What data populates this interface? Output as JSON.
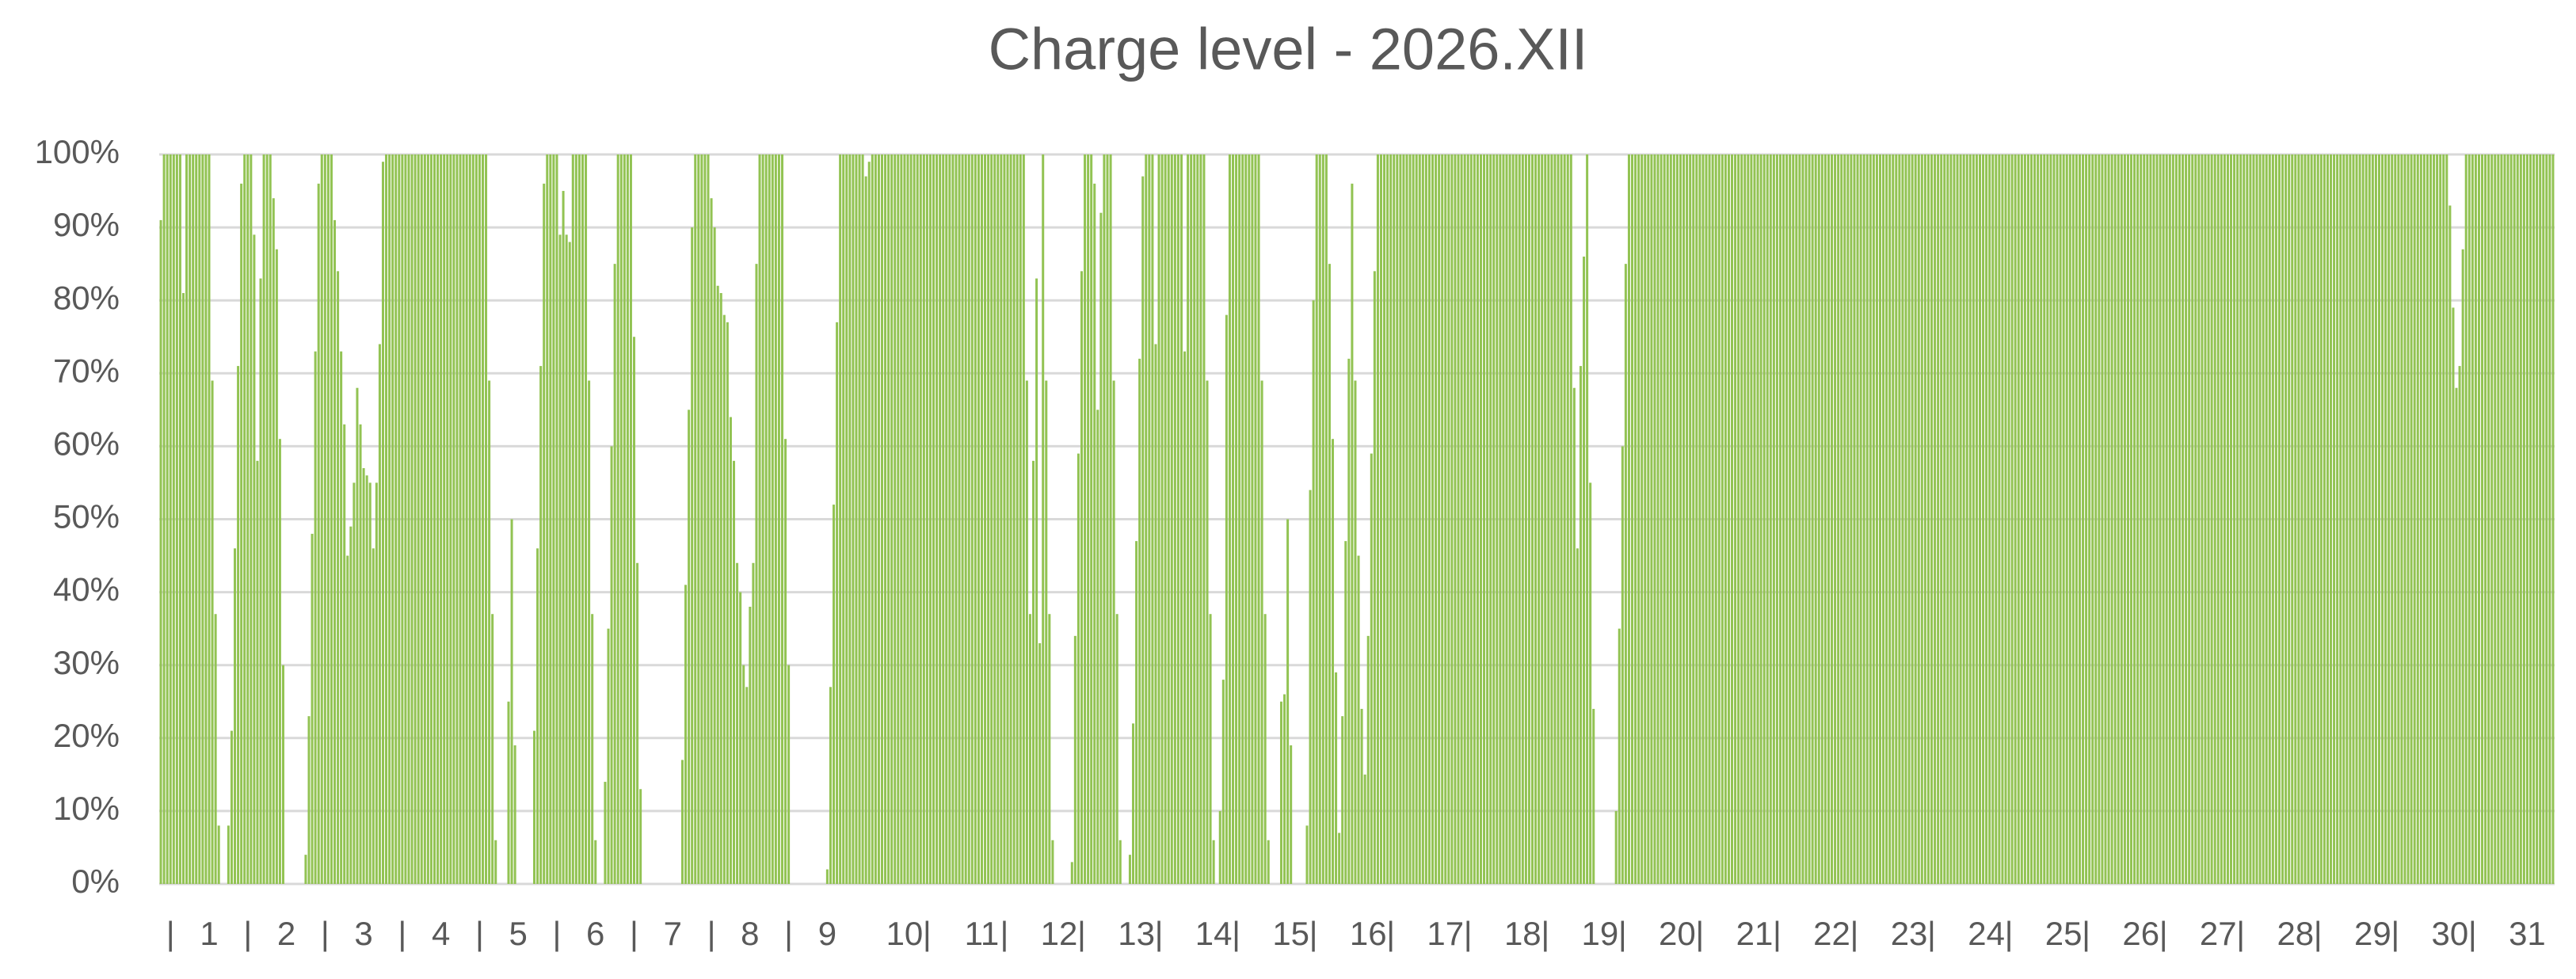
{
  "chart_data": {
    "type": "bar",
    "title": "Charge level - 2026.XII",
    "color": "#92c353",
    "grid": true,
    "ylim": [
      0,
      100
    ],
    "yticks": [
      {
        "value": 0,
        "label": "0%"
      },
      {
        "value": 10,
        "label": "10%"
      },
      {
        "value": 20,
        "label": "20%"
      },
      {
        "value": 30,
        "label": "30%"
      },
      {
        "value": 40,
        "label": "40%"
      },
      {
        "value": 50,
        "label": "50%"
      },
      {
        "value": 60,
        "label": "60%"
      },
      {
        "value": 70,
        "label": "70%"
      },
      {
        "value": 80,
        "label": "80%"
      },
      {
        "value": 90,
        "label": "90%"
      },
      {
        "value": 100,
        "label": "100%"
      }
    ],
    "categories": [
      null,
      null,
      null,
      "|",
      null,
      null,
      null,
      null,
      null,
      null,
      null,
      null,
      null,
      null,
      null,
      "1",
      null,
      null,
      null,
      null,
      null,
      null,
      null,
      null,
      null,
      null,
      null,
      "|",
      null,
      null,
      null,
      null,
      null,
      null,
      null,
      null,
      null,
      null,
      null,
      "2",
      null,
      null,
      null,
      null,
      null,
      null,
      null,
      null,
      null,
      null,
      null,
      "|",
      null,
      null,
      null,
      null,
      null,
      null,
      null,
      null,
      null,
      null,
      null,
      "3",
      null,
      null,
      null,
      null,
      null,
      null,
      null,
      null,
      null,
      null,
      null,
      "|",
      null,
      null,
      null,
      null,
      null,
      null,
      null,
      null,
      null,
      null,
      null,
      "4",
      null,
      null,
      null,
      null,
      null,
      null,
      null,
      null,
      null,
      null,
      null,
      "|",
      null,
      null,
      null,
      null,
      null,
      null,
      null,
      null,
      null,
      null,
      null,
      "5",
      null,
      null,
      null,
      null,
      null,
      null,
      null,
      null,
      null,
      null,
      null,
      "|",
      null,
      null,
      null,
      null,
      null,
      null,
      null,
      null,
      null,
      null,
      null,
      "6",
      null,
      null,
      null,
      null,
      null,
      null,
      null,
      null,
      null,
      null,
      null,
      "|",
      null,
      null,
      null,
      null,
      null,
      null,
      null,
      null,
      null,
      null,
      null,
      "7",
      null,
      null,
      null,
      null,
      null,
      null,
      null,
      null,
      null,
      null,
      null,
      "|",
      null,
      null,
      null,
      null,
      null,
      null,
      null,
      null,
      null,
      null,
      null,
      "8",
      null,
      null,
      null,
      null,
      null,
      null,
      null,
      null,
      null,
      null,
      null,
      "|",
      null,
      null,
      null,
      null,
      null,
      null,
      null,
      null,
      null,
      null,
      null,
      "9",
      null,
      null,
      null,
      null,
      null,
      null,
      null,
      null,
      null,
      null,
      null,
      null,
      null,
      null,
      null,
      null,
      null,
      null,
      null,
      null,
      null,
      null,
      null,
      "10",
      null,
      null,
      null,
      null,
      null,
      null,
      "|",
      null,
      null,
      null,
      null,
      null,
      null,
      null,
      null,
      null,
      null,
      null,
      null,
      null,
      null,
      null,
      null,
      "11",
      null,
      null,
      null,
      null,
      null,
      null,
      "|",
      null,
      null,
      null,
      null,
      null,
      null,
      null,
      null,
      null,
      null,
      null,
      null,
      null,
      null,
      null,
      null,
      "12",
      null,
      null,
      null,
      null,
      null,
      null,
      "|",
      null,
      null,
      null,
      null,
      null,
      null,
      null,
      null,
      null,
      null,
      null,
      null,
      null,
      null,
      null,
      null,
      "13",
      null,
      null,
      null,
      null,
      null,
      null,
      "|",
      null,
      null,
      null,
      null,
      null,
      null,
      null,
      null,
      null,
      null,
      null,
      null,
      null,
      null,
      null,
      null,
      "14",
      null,
      null,
      null,
      null,
      null,
      null,
      "|",
      null,
      null,
      null,
      null,
      null,
      null,
      null,
      null,
      null,
      null,
      null,
      null,
      null,
      null,
      null,
      null,
      "15",
      null,
      null,
      null,
      null,
      null,
      null,
      "|",
      null,
      null,
      null,
      null,
      null,
      null,
      null,
      null,
      null,
      null,
      null,
      null,
      null,
      null,
      null,
      null,
      "16",
      null,
      null,
      null,
      null,
      null,
      null,
      "|",
      null,
      null,
      null,
      null,
      null,
      null,
      null,
      null,
      null,
      null,
      null,
      null,
      null,
      null,
      null,
      null,
      "17",
      null,
      null,
      null,
      null,
      null,
      null,
      "|",
      null,
      null,
      null,
      null,
      null,
      null,
      null,
      null,
      null,
      null,
      null,
      null,
      null,
      null,
      null,
      null,
      "18",
      null,
      null,
      null,
      null,
      null,
      null,
      "|",
      null,
      null,
      null,
      null,
      null,
      null,
      null,
      null,
      null,
      null,
      null,
      null,
      null,
      null,
      null,
      null,
      "19",
      null,
      null,
      null,
      null,
      null,
      null,
      "|",
      null,
      null,
      null,
      null,
      null,
      null,
      null,
      null,
      null,
      null,
      null,
      null,
      null,
      null,
      null,
      null,
      "20",
      null,
      null,
      null,
      null,
      null,
      null,
      "|",
      null,
      null,
      null,
      null,
      null,
      null,
      null,
      null,
      null,
      null,
      null,
      null,
      null,
      null,
      null,
      null,
      "21",
      null,
      null,
      null,
      null,
      null,
      null,
      "|",
      null,
      null,
      null,
      null,
      null,
      null,
      null,
      null,
      null,
      null,
      null,
      null,
      null,
      null,
      null,
      null,
      "22",
      null,
      null,
      null,
      null,
      null,
      null,
      "|",
      null,
      null,
      null,
      null,
      null,
      null,
      null,
      null,
      null,
      null,
      null,
      null,
      null,
      null,
      null,
      null,
      "23",
      null,
      null,
      null,
      null,
      null,
      null,
      "|",
      null,
      null,
      null,
      null,
      null,
      null,
      null,
      null,
      null,
      null,
      null,
      null,
      null,
      null,
      null,
      null,
      "24",
      null,
      null,
      null,
      null,
      null,
      null,
      "|",
      null,
      null,
      null,
      null,
      null,
      null,
      null,
      null,
      null,
      null,
      null,
      null,
      null,
      null,
      null,
      null,
      "25",
      null,
      null,
      null,
      null,
      null,
      null,
      "|",
      null,
      null,
      null,
      null,
      null,
      null,
      null,
      null,
      null,
      null,
      null,
      null,
      null,
      null,
      null,
      null,
      "26",
      null,
      null,
      null,
      null,
      null,
      null,
      "|",
      null,
      null,
      null,
      null,
      null,
      null,
      null,
      null,
      null,
      null,
      null,
      null,
      null,
      null,
      null,
      null,
      "27",
      null,
      null,
      null,
      null,
      null,
      null,
      "|",
      null,
      null,
      null,
      null,
      null,
      null,
      null,
      null,
      null,
      null,
      null,
      null,
      null,
      null,
      null,
      null,
      "28",
      null,
      null,
      null,
      null,
      null,
      null,
      "|",
      null,
      null,
      null,
      null,
      null,
      null,
      null,
      null,
      null,
      null,
      null,
      null,
      null,
      null,
      null,
      null,
      "29",
      null,
      null,
      null,
      null,
      null,
      null,
      "|",
      null,
      null,
      null,
      null,
      null,
      null,
      null,
      null,
      null,
      null,
      null,
      null,
      null,
      null,
      null,
      null,
      "30",
      null,
      null,
      null,
      null,
      null,
      null,
      "|",
      null,
      null,
      null,
      null,
      null,
      null,
      null,
      null,
      null,
      null,
      null,
      null,
      null,
      null,
      null,
      null,
      "31",
      null,
      null,
      null,
      null,
      null,
      null,
      null,
      null
    ],
    "values": [
      91,
      100,
      100,
      100,
      100,
      100,
      100,
      81,
      100,
      100,
      100,
      100,
      100,
      100,
      100,
      100,
      69,
      37,
      8,
      0,
      0,
      8,
      21,
      46,
      71,
      96,
      100,
      100,
      100,
      89,
      58,
      83,
      100,
      100,
      100,
      94,
      87,
      61,
      30,
      0,
      0,
      0,
      0,
      0,
      0,
      4,
      23,
      48,
      73,
      96,
      100,
      100,
      100,
      100,
      91,
      84,
      73,
      63,
      45,
      49,
      55,
      68,
      63,
      57,
      56,
      55,
      46,
      55,
      74,
      99,
      100,
      100,
      100,
      100,
      100,
      100,
      100,
      100,
      100,
      100,
      100,
      100,
      100,
      100,
      100,
      100,
      100,
      100,
      100,
      100,
      100,
      100,
      100,
      100,
      100,
      100,
      100,
      100,
      100,
      100,
      100,
      100,
      69,
      37,
      6,
      0,
      0,
      0,
      25,
      50,
      19,
      0,
      0,
      0,
      0,
      0,
      21,
      46,
      71,
      96,
      100,
      100,
      100,
      100,
      89,
      95,
      89,
      88,
      100,
      100,
      100,
      100,
      100,
      69,
      37,
      6,
      0,
      0,
      14,
      35,
      60,
      85,
      100,
      100,
      100,
      100,
      100,
      75,
      44,
      13,
      0,
      0,
      0,
      0,
      0,
      0,
      0,
      0,
      0,
      0,
      0,
      0,
      17,
      41,
      65,
      90,
      100,
      100,
      100,
      100,
      100,
      94,
      90,
      82,
      81,
      78,
      77,
      64,
      58,
      44,
      40,
      30,
      27,
      38,
      44,
      85,
      100,
      100,
      100,
      100,
      100,
      100,
      100,
      100,
      61,
      30,
      0,
      0,
      0,
      0,
      0,
      0,
      0,
      0,
      0,
      0,
      0,
      2,
      27,
      52,
      77,
      100,
      100,
      100,
      100,
      100,
      100,
      100,
      100,
      97,
      99,
      100,
      100,
      100,
      100,
      100,
      100,
      100,
      100,
      100,
      100,
      100,
      100,
      100,
      100,
      100,
      100,
      100,
      100,
      100,
      100,
      100,
      100,
      100,
      100,
      100,
      100,
      100,
      100,
      100,
      100,
      100,
      100,
      100,
      100,
      100,
      100,
      100,
      100,
      100,
      100,
      100,
      100,
      100,
      100,
      100,
      100,
      100,
      100,
      69,
      37,
      58,
      83,
      33,
      100,
      69,
      37,
      6,
      0,
      0,
      0,
      0,
      0,
      3,
      34,
      59,
      84,
      100,
      100,
      100,
      96,
      65,
      92,
      100,
      100,
      100,
      69,
      37,
      6,
      0,
      0,
      4,
      22,
      47,
      72,
      97,
      100,
      100,
      100,
      74,
      100,
      100,
      100,
      100,
      100,
      100,
      100,
      100,
      73,
      100,
      100,
      100,
      100,
      100,
      100,
      69,
      37,
      6,
      0,
      10,
      28,
      78,
      100,
      100,
      100,
      100,
      100,
      100,
      100,
      100,
      100,
      100,
      69,
      37,
      6,
      0,
      0,
      0,
      25,
      26,
      50,
      19,
      0,
      0,
      0,
      0,
      8,
      54,
      80,
      100,
      100,
      100,
      100,
      85,
      61,
      29,
      7,
      23,
      47,
      72,
      96,
      69,
      45,
      24,
      15,
      34,
      59,
      84,
      100,
      100,
      100,
      100,
      100,
      100,
      100,
      100,
      100,
      100,
      100,
      100,
      100,
      100,
      100,
      100,
      100,
      100,
      100,
      100,
      100,
      100,
      100,
      100,
      100,
      100,
      100,
      100,
      100,
      100,
      100,
      100,
      100,
      100,
      100,
      100,
      100,
      100,
      100,
      100,
      100,
      100,
      100,
      100,
      100,
      100,
      100,
      100,
      100,
      100,
      100,
      100,
      100,
      100,
      100,
      100,
      100,
      100,
      100,
      100,
      100,
      68,
      46,
      71,
      86,
      100,
      55,
      24,
      0,
      0,
      0,
      0,
      0,
      0,
      10,
      35,
      60,
      85,
      100,
      100,
      100,
      100,
      100,
      100,
      100,
      100,
      100,
      100,
      100,
      100,
      100,
      100,
      100,
      100,
      100,
      100,
      100,
      100,
      100,
      100,
      100,
      100,
      100,
      100,
      100,
      100,
      100,
      100,
      100,
      100,
      100,
      100,
      100,
      100,
      100,
      100,
      100,
      100,
      100,
      100,
      100,
      100,
      100,
      100,
      100,
      100,
      100,
      100,
      100,
      100,
      100,
      100,
      100,
      100,
      100,
      100,
      100,
      100,
      100,
      100,
      100,
      100,
      100,
      100,
      100,
      100,
      100,
      100,
      100,
      100,
      100,
      100,
      100,
      100,
      100,
      100,
      100,
      100,
      100,
      100,
      100,
      100,
      100,
      100,
      100,
      100,
      100,
      100,
      100,
      100,
      100,
      100,
      100,
      100,
      100,
      100,
      100,
      100,
      100,
      100,
      100,
      100,
      100,
      100,
      100,
      100,
      100,
      100,
      100,
      100,
      100,
      100,
      100,
      100,
      100,
      100,
      100,
      100,
      100,
      100,
      100,
      100,
      100,
      100,
      100,
      100,
      100,
      100,
      100,
      100,
      100,
      100,
      100,
      100,
      100,
      100,
      100,
      100,
      100,
      100,
      100,
      100,
      100,
      100,
      100,
      100,
      100,
      100,
      100,
      100,
      100,
      100,
      100,
      100,
      100,
      100,
      100,
      100,
      100,
      100,
      100,
      100,
      100,
      100,
      100,
      100,
      100,
      100,
      100,
      100,
      100,
      100,
      100,
      100,
      100,
      100,
      100,
      100,
      100,
      100,
      100,
      100,
      100,
      100,
      100,
      100,
      100,
      100,
      100,
      100,
      100,
      100,
      100,
      100,
      100,
      100,
      100,
      100,
      100,
      100,
      100,
      100,
      100,
      100,
      100,
      100,
      100,
      100,
      100,
      100,
      100,
      100,
      100,
      100,
      100,
      100,
      100,
      100,
      100,
      100,
      100,
      100,
      100,
      100,
      100,
      100,
      100,
      100,
      100,
      100,
      100,
      100,
      100,
      100,
      100,
      100,
      100,
      100,
      100,
      100,
      100,
      100,
      100,
      100,
      100,
      100,
      100,
      100,
      100,
      100,
      100,
      100,
      100,
      93,
      79,
      68,
      71,
      87,
      100,
      100,
      100,
      100,
      100,
      100,
      100,
      100,
      100,
      100,
      100,
      100,
      100,
      100,
      100,
      100,
      100,
      100,
      100,
      100,
      100,
      100,
      100,
      100,
      100,
      100,
      100,
      100
    ]
  }
}
